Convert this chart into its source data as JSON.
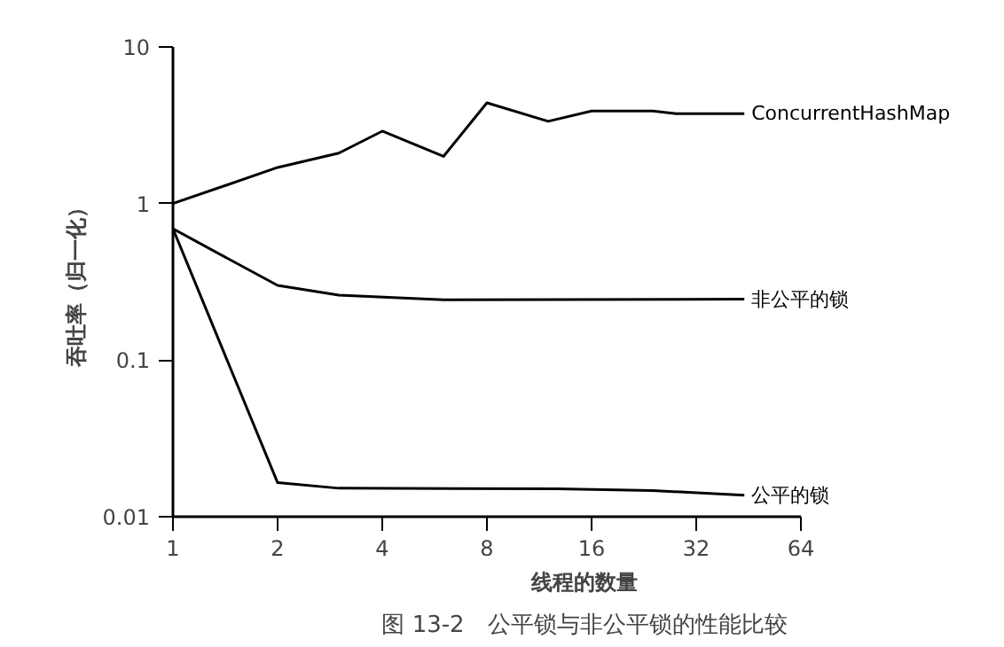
{
  "chart_data": {
    "type": "line",
    "title": "图 13-2　公平锁与非公平锁的性能比较",
    "xlabel": "线程的数量",
    "ylabel": "吞吐率（归一化）",
    "log": "xy",
    "xlim": [
      1,
      64
    ],
    "ylim": [
      0.01,
      10
    ],
    "xticks": [
      1,
      2,
      4,
      8,
      16,
      32,
      64
    ],
    "yticks": [
      0.01,
      0.1,
      1,
      10
    ],
    "grid": false,
    "legend": false,
    "series": [
      {
        "name": "ConcurrentHashMap",
        "color": "#000000",
        "x": [
          1,
          2,
          3,
          4,
          6,
          8,
          12,
          16,
          24,
          28,
          44
        ],
        "values": [
          1,
          1.7,
          2.1,
          2.9,
          2.0,
          4.4,
          3.35,
          3.9,
          3.9,
          3.75,
          3.75
        ]
      },
      {
        "name": "非公平的锁",
        "color": "#000000",
        "x": [
          1,
          2,
          3,
          6,
          44
        ],
        "values": [
          0.69,
          0.3,
          0.26,
          0.243,
          0.245
        ]
      },
      {
        "name": "公平的锁",
        "color": "#000000",
        "x": [
          1,
          2,
          3,
          12.7,
          24,
          44
        ],
        "values": [
          0.69,
          0.0165,
          0.0152,
          0.0151,
          0.0147,
          0.0137
        ]
      }
    ]
  }
}
